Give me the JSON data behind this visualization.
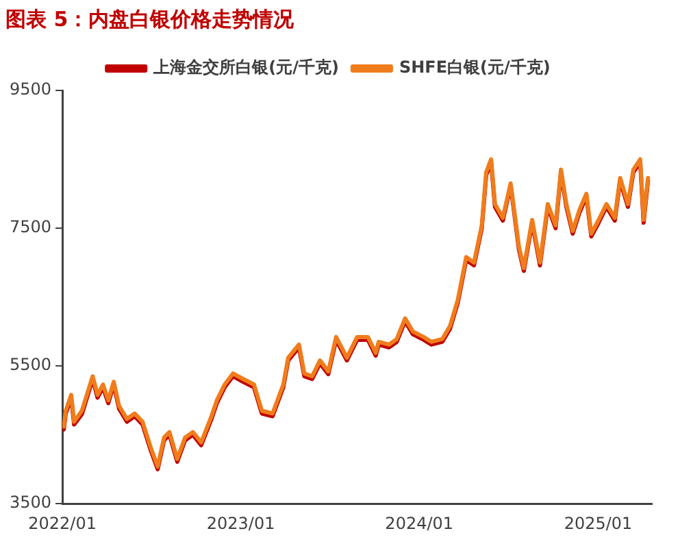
{
  "chart_data": {
    "type": "line",
    "title": "图表 5：内盘白银价格走势情况",
    "x": [
      "2022-01-04",
      "2022-01-08",
      "2022-01-19",
      "2022-01-25",
      "2022-02-10",
      "2022-03-04",
      "2022-03-14",
      "2022-03-25",
      "2022-04-05",
      "2022-04-16",
      "2022-04-27",
      "2022-05-13",
      "2022-05-29",
      "2022-06-14",
      "2022-07-01",
      "2022-07-15",
      "2022-07-28",
      "2022-08-08",
      "2022-08-24",
      "2022-09-09",
      "2022-09-25",
      "2022-10-12",
      "2022-11-02",
      "2022-11-13",
      "2022-11-29",
      "2022-12-16",
      "2023-01-06",
      "2023-01-28",
      "2023-02-13",
      "2023-03-07",
      "2023-03-29",
      "2023-04-08",
      "2023-04-30",
      "2023-05-11",
      "2023-05-27",
      "2023-06-12",
      "2023-06-29",
      "2023-07-15",
      "2023-08-06",
      "2023-08-27",
      "2023-09-18",
      "2023-10-04",
      "2023-10-10",
      "2023-10-31",
      "2023-11-16",
      "2023-12-03",
      "2023-12-19",
      "2024-01-10",
      "2024-01-26",
      "2024-02-17",
      "2024-03-04",
      "2024-03-20",
      "2024-04-06",
      "2024-04-22",
      "2024-05-08",
      "2024-05-17",
      "2024-05-27",
      "2024-06-04",
      "2024-06-20",
      "2024-07-06",
      "2024-07-23",
      "2024-08-02",
      "2024-08-19",
      "2024-09-04",
      "2024-09-20",
      "2024-10-06",
      "2024-10-17",
      "2024-10-28",
      "2024-11-10",
      "2024-11-24",
      "2024-12-08",
      "2024-12-18",
      "2025-01-02",
      "2025-01-18",
      "2025-02-04",
      "2025-02-15",
      "2025-03-03",
      "2025-03-14",
      "2025-03-28",
      "2025-04-04",
      "2025-04-13"
    ],
    "series": [
      {
        "name": "上海金交所白银(元/千克)",
        "color": "#c00000",
        "values": [
          4580,
          4810,
          5040,
          4650,
          4800,
          5310,
          5040,
          5190,
          4960,
          5230,
          4880,
          4690,
          4770,
          4650,
          4270,
          4000,
          4420,
          4500,
          4110,
          4420,
          4500,
          4350,
          4730,
          4960,
          5190,
          5350,
          5270,
          5190,
          4810,
          4770,
          5190,
          5580,
          5770,
          5350,
          5310,
          5540,
          5380,
          5880,
          5580,
          5880,
          5880,
          5650,
          5810,
          5770,
          5850,
          6150,
          5960,
          5880,
          5810,
          5850,
          6040,
          6420,
          7040,
          6960,
          7500,
          8270,
          8460,
          7810,
          7610,
          8120,
          7190,
          6880,
          7580,
          6960,
          7810,
          7500,
          8310,
          7810,
          7420,
          7730,
          7960,
          7380,
          7580,
          7810,
          7610,
          8190,
          7810,
          8310,
          8460,
          7580,
          8190
        ]
      },
      {
        "name": "SHFE白银(元/千克)",
        "color": "#f07c1b",
        "values": [
          4620,
          4850,
          5080,
          4690,
          4850,
          5350,
          5080,
          5230,
          5000,
          5270,
          4920,
          4730,
          4810,
          4690,
          4310,
          4040,
          4460,
          4540,
          4150,
          4460,
          4540,
          4390,
          4770,
          5000,
          5230,
          5390,
          5310,
          5230,
          4850,
          4810,
          5230,
          5620,
          5810,
          5390,
          5350,
          5580,
          5420,
          5920,
          5620,
          5920,
          5920,
          5690,
          5850,
          5810,
          5890,
          6190,
          6000,
          5920,
          5850,
          5890,
          6080,
          6460,
          7080,
          7000,
          7540,
          8310,
          8500,
          7850,
          7650,
          8150,
          7230,
          6920,
          7620,
          7000,
          7850,
          7540,
          8350,
          7850,
          7460,
          7770,
          8000,
          7420,
          7620,
          7850,
          7650,
          8230,
          7850,
          8350,
          8500,
          7620,
          8230
        ]
      }
    ],
    "xlim": [
      "2022-01-01",
      "2025-04-21"
    ],
    "xticks": [
      {
        "value": "2022-01-01",
        "label": "2022/01"
      },
      {
        "value": "2023-01-01",
        "label": "2023/01"
      },
      {
        "value": "2024-01-01",
        "label": "2024/01"
      },
      {
        "value": "2025-01-01",
        "label": "2025/01"
      }
    ],
    "ylim": [
      3500,
      9500
    ],
    "yticks": [
      3500,
      5500,
      7500,
      9500
    ],
    "legend": "top",
    "grid": false,
    "marker": "none",
    "line_style": "solid"
  }
}
